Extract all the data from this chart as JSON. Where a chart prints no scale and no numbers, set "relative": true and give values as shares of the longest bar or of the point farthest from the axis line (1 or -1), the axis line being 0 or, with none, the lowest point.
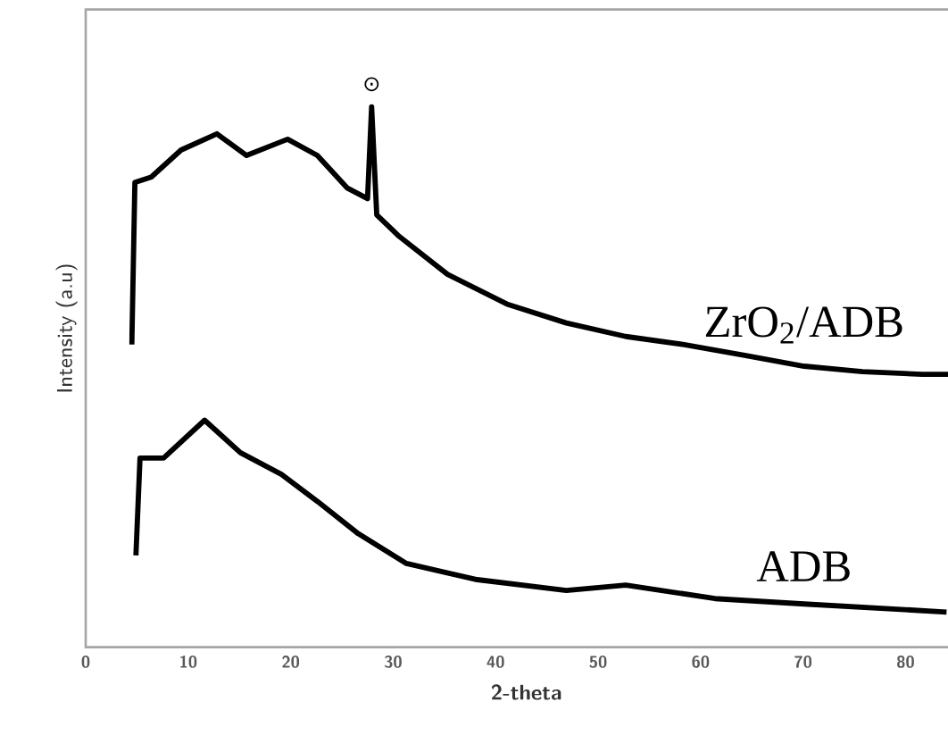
{
  "chart_data": {
    "type": "line",
    "relative": true,
    "xlabel": "2-theta",
    "ylabel": "Intensity (a.u)",
    "xlim": [
      0,
      86
    ],
    "xticks": [
      0,
      10,
      20,
      30,
      40,
      50,
      60,
      70,
      80
    ],
    "series": [
      {
        "name": "ZrO$_{2}$/ADB",
        "color": "#000000",
        "x": [
          4.5,
          4.8,
          6.4,
          9.3,
          12.8,
          15.7,
          19.7,
          22.6,
          25.5,
          27.5,
          27.9,
          28.4,
          30.6,
          35.3,
          41.1,
          46.9,
          52.7,
          58.4,
          64.3,
          70.1,
          75.8,
          81.6,
          85.7
        ],
        "values": [
          0.56,
          0.86,
          0.87,
          0.92,
          0.95,
          0.91,
          0.94,
          0.91,
          0.85,
          0.83,
          1.0,
          0.8,
          0.76,
          0.69,
          0.635,
          0.6,
          0.575,
          0.56,
          0.54,
          0.52,
          0.51,
          0.505,
          0.505
        ]
      },
      {
        "name": "ADB",
        "color": "#000000",
        "x": [
          4.9,
          5.3,
          7.6,
          11.6,
          15.1,
          19.1,
          22.6,
          26.6,
          31.3,
          38.2,
          46.9,
          52.7,
          61.4,
          70.1,
          84
        ],
        "values": [
          0.17,
          0.35,
          0.35,
          0.42,
          0.36,
          0.32,
          0.27,
          0.21,
          0.155,
          0.125,
          0.105,
          0.115,
          0.09,
          0.08,
          0.065
        ]
      }
    ],
    "annotations": [
      "⊙"
    ]
  }
}
